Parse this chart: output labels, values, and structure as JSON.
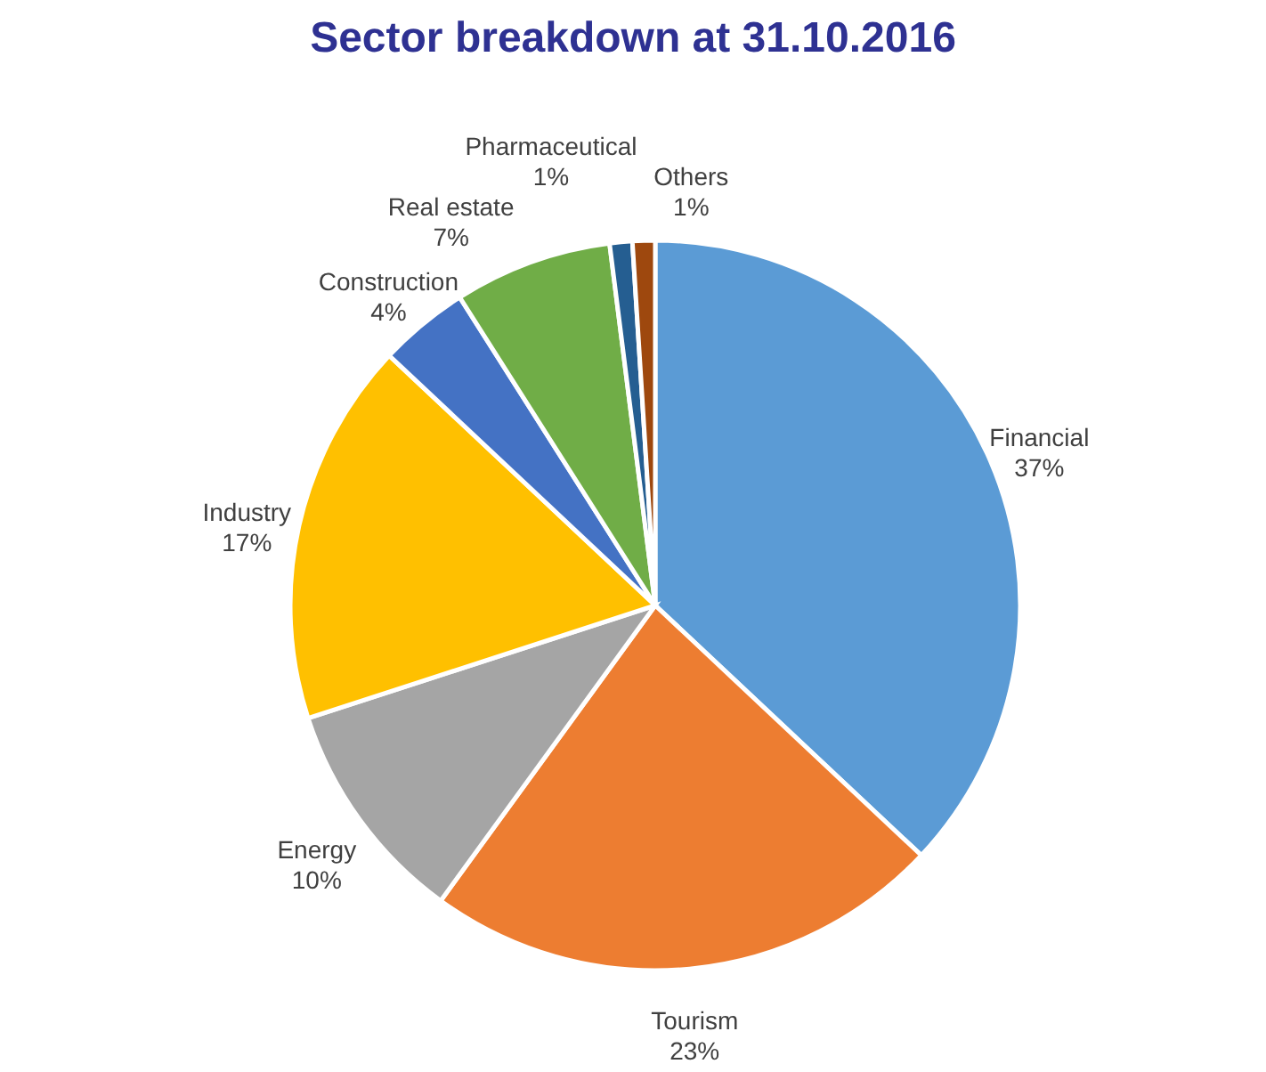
{
  "chart_data": {
    "type": "pie",
    "title": "Sector breakdown at 31.10.2016",
    "categories": [
      "Financial",
      "Tourism",
      "Energy",
      "Industry",
      "Construction",
      "Real estate",
      "Pharmaceutical",
      "Others"
    ],
    "values": [
      37,
      23,
      10,
      17,
      4,
      7,
      1,
      1
    ],
    "value_labels": [
      "37%",
      "23%",
      "10%",
      "17%",
      "4%",
      "7%",
      "1%",
      "1%"
    ],
    "colors": [
      "#5b9bd5",
      "#ed7d31",
      "#a5a5a5",
      "#ffc000",
      "#4472c4",
      "#70ad47",
      "#255e91",
      "#9e480e"
    ],
    "legend": false
  }
}
